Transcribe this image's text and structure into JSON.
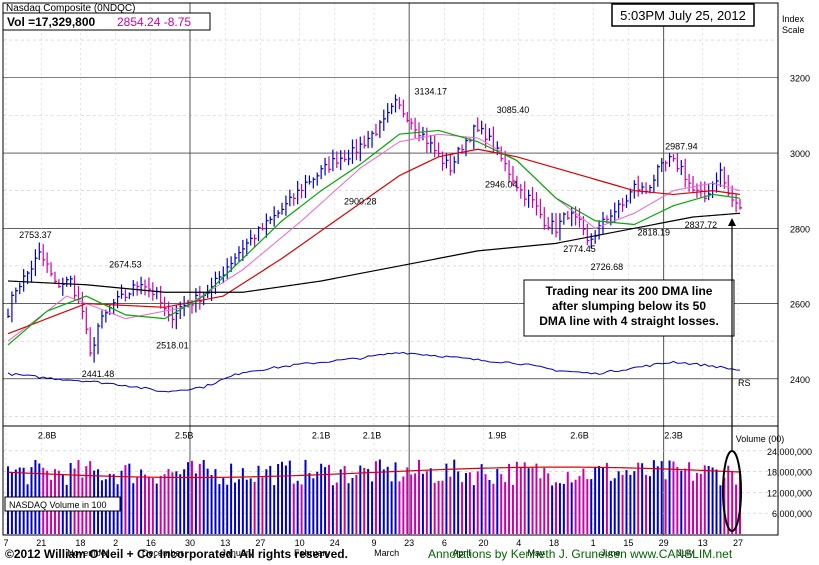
{
  "header": {
    "title": "Nasdaq Composite  (0NDQC)",
    "vol_text": "Vol =17,329,800",
    "price_change_text": "2854.24  -8.75",
    "timestamp": "5:03PM July 25, 2012",
    "index_scale_label": "Index\nScale"
  },
  "colors": {
    "background": "#ffffff",
    "grid": "#c8c8c8",
    "up_bar": "#0000cc",
    "down_bar": "#cc00aa",
    "ma_50": "#00aa00",
    "ma_200": "#000000",
    "ma_10week": "#dd0000",
    "ma_pink": "#ee66cc",
    "rs_line": "#0000cc",
    "avg_volume": "#dd0000",
    "annotation_text": "#006600"
  },
  "chart_data": {
    "type": "candlestick",
    "price_axis": {
      "ticks": [
        2400,
        2600,
        2800,
        3000,
        3200
      ],
      "range": [
        2280,
        3380
      ]
    },
    "volume_axis": {
      "label": "Volume (00)",
      "ticks": [
        24000000,
        18000000,
        12000000,
        6000000
      ],
      "tick_labels": [
        "24,000,000",
        "18,000,000",
        "12,000,000",
        "6,000,000"
      ],
      "range": [
        0,
        30000000
      ]
    },
    "x_labels": {
      "days": [
        "7",
        "21",
        "18",
        "2",
        "16",
        "30",
        "13",
        "27",
        "10",
        "24",
        "9",
        "23",
        "6",
        "20",
        "4",
        "18",
        "1",
        "15",
        "29",
        "13",
        "27"
      ],
      "months": [
        "November",
        "December",
        "January",
        "February",
        "March",
        "April",
        "May",
        "June",
        "July"
      ]
    },
    "price_labels": [
      {
        "text": "2753.37",
        "value": 2753.37
      },
      {
        "text": "2674.53",
        "value": 2674.53
      },
      {
        "text": "2441.48",
        "value": 2441.48
      },
      {
        "text": "2518.01",
        "value": 2518.01
      },
      {
        "text": "2900.28",
        "value": 2900.28
      },
      {
        "text": "3134.17",
        "value": 3134.17
      },
      {
        "text": "2946.04",
        "value": 2946.04
      },
      {
        "text": "3085.40",
        "value": 3085.4
      },
      {
        "text": "2774.45",
        "value": 2774.45
      },
      {
        "text": "2726.68",
        "value": 2726.68
      },
      {
        "text": "2818.19",
        "value": 2818.19
      },
      {
        "text": "2987.94",
        "value": 2987.94
      },
      {
        "text": "2837.72",
        "value": 2837.72
      }
    ],
    "volume_labels": [
      "2.8B",
      "2.5B",
      "2.1B",
      "2.1B",
      "1.9B",
      "2.6B",
      "2.3B"
    ],
    "price_keypoints": [
      [
        0,
        2580
      ],
      [
        2,
        2640
      ],
      [
        5,
        2680
      ],
      [
        8,
        2730
      ],
      [
        10,
        2700
      ],
      [
        12,
        2650
      ],
      [
        16,
        2660
      ],
      [
        19,
        2580
      ],
      [
        21,
        2460
      ],
      [
        23,
        2540
      ],
      [
        27,
        2600
      ],
      [
        30,
        2620
      ],
      [
        34,
        2660
      ],
      [
        38,
        2620
      ],
      [
        41,
        2560
      ],
      [
        44,
        2590
      ],
      [
        48,
        2610
      ],
      [
        52,
        2640
      ],
      [
        56,
        2700
      ],
      [
        60,
        2750
      ],
      [
        64,
        2790
      ],
      [
        68,
        2830
      ],
      [
        72,
        2870
      ],
      [
        76,
        2920
      ],
      [
        80,
        2950
      ],
      [
        84,
        2985
      ],
      [
        88,
        3000
      ],
      [
        92,
        3040
      ],
      [
        96,
        3080
      ],
      [
        99,
        3130
      ],
      [
        102,
        3100
      ],
      [
        105,
        3060
      ],
      [
        108,
        3020
      ],
      [
        111,
        2980
      ],
      [
        113,
        2960
      ],
      [
        116,
        3020
      ],
      [
        119,
        3060
      ],
      [
        122,
        3050
      ],
      [
        125,
        3000
      ],
      [
        128,
        2950
      ],
      [
        131,
        2900
      ],
      [
        134,
        2870
      ],
      [
        137,
        2820
      ],
      [
        140,
        2800
      ],
      [
        143,
        2840
      ],
      [
        146,
        2810
      ],
      [
        148,
        2760
      ],
      [
        151,
        2800
      ],
      [
        154,
        2840
      ],
      [
        157,
        2860
      ],
      [
        160,
        2910
      ],
      [
        163,
        2900
      ],
      [
        166,
        2950
      ],
      [
        169,
        2980
      ],
      [
        172,
        2960
      ],
      [
        175,
        2900
      ],
      [
        178,
        2880
      ],
      [
        180,
        2920
      ],
      [
        182,
        2950
      ],
      [
        184,
        2890
      ],
      [
        186,
        2860
      ],
      [
        187,
        2854.24
      ]
    ],
    "ma50_keypoints": [
      [
        0,
        2490
      ],
      [
        10,
        2580
      ],
      [
        20,
        2620
      ],
      [
        30,
        2570
      ],
      [
        40,
        2560
      ],
      [
        50,
        2620
      ],
      [
        60,
        2720
      ],
      [
        70,
        2820
      ],
      [
        80,
        2900
      ],
      [
        90,
        2970
      ],
      [
        100,
        3050
      ],
      [
        110,
        3060
      ],
      [
        120,
        3030
      ],
      [
        130,
        2980
      ],
      [
        140,
        2880
      ],
      [
        150,
        2820
      ],
      [
        160,
        2810
      ],
      [
        170,
        2860
      ],
      [
        180,
        2890
      ],
      [
        187,
        2880
      ]
    ],
    "ma200_keypoints": [
      [
        0,
        2660
      ],
      [
        20,
        2650
      ],
      [
        40,
        2630
      ],
      [
        60,
        2630
      ],
      [
        80,
        2660
      ],
      [
        100,
        2700
      ],
      [
        120,
        2740
      ],
      [
        140,
        2760
      ],
      [
        160,
        2800
      ],
      [
        175,
        2830
      ],
      [
        187,
        2840
      ]
    ],
    "ma_red_keypoints": [
      [
        0,
        2520
      ],
      [
        20,
        2600
      ],
      [
        40,
        2590
      ],
      [
        55,
        2620
      ],
      [
        70,
        2720
      ],
      [
        85,
        2830
      ],
      [
        100,
        2940
      ],
      [
        110,
        2990
      ],
      [
        120,
        3010
      ],
      [
        130,
        2990
      ],
      [
        140,
        2960
      ],
      [
        150,
        2930
      ],
      [
        160,
        2900
      ],
      [
        170,
        2890
      ],
      [
        180,
        2900
      ],
      [
        187,
        2890
      ]
    ],
    "ma_pink_keypoints": [
      [
        0,
        2500
      ],
      [
        15,
        2620
      ],
      [
        30,
        2560
      ],
      [
        45,
        2590
      ],
      [
        60,
        2690
      ],
      [
        75,
        2820
      ],
      [
        90,
        2960
      ],
      [
        100,
        3030
      ],
      [
        110,
        3050
      ],
      [
        120,
        3040
      ],
      [
        130,
        2980
      ],
      [
        140,
        2880
      ],
      [
        150,
        2800
      ],
      [
        160,
        2840
      ],
      [
        170,
        2900
      ],
      [
        180,
        2920
      ],
      [
        187,
        2900
      ]
    ],
    "rs_keypoints": [
      [
        0,
        0.52
      ],
      [
        10,
        0.45
      ],
      [
        20,
        0.4
      ],
      [
        30,
        0.33
      ],
      [
        40,
        0.22
      ],
      [
        50,
        0.3
      ],
      [
        60,
        0.55
      ],
      [
        75,
        0.68
      ],
      [
        90,
        0.78
      ],
      [
        100,
        0.88
      ],
      [
        110,
        0.82
      ],
      [
        120,
        0.75
      ],
      [
        130,
        0.7
      ],
      [
        140,
        0.58
      ],
      [
        150,
        0.52
      ],
      [
        160,
        0.62
      ],
      [
        170,
        0.72
      ],
      [
        180,
        0.65
      ],
      [
        187,
        0.58
      ]
    ],
    "rs_label": "RS"
  },
  "volume_box_label": "NASDAQ Volume in 100",
  "annotation": "Trading near its 200 DMA line\nafter slumping below its 50\nDMA line with 4 straight losses.",
  "footer": {
    "copyright": "©2012 William O'Neil + Co. Incorporated. All rights reserved.",
    "credit": "Annotations by Kenneth J. Gruneisen  www.CANSLIM.net"
  }
}
